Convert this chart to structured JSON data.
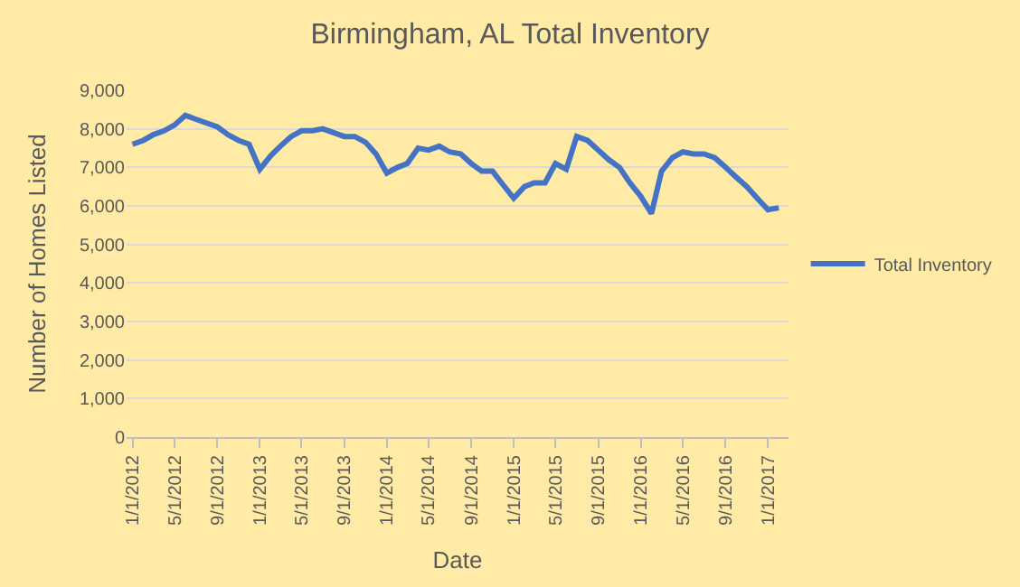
{
  "chart_data": {
    "type": "line",
    "title": "Birmingham, AL Total Inventory",
    "xlabel": "Date",
    "ylabel": "Number of Homes Listed",
    "x": [
      "2012-01",
      "2012-02",
      "2012-03",
      "2012-04",
      "2012-05",
      "2012-06",
      "2012-07",
      "2012-08",
      "2012-09",
      "2012-10",
      "2012-11",
      "2012-12",
      "2013-01",
      "2013-02",
      "2013-03",
      "2013-04",
      "2013-05",
      "2013-06",
      "2013-07",
      "2013-08",
      "2013-09",
      "2013-10",
      "2013-11",
      "2013-12",
      "2014-01",
      "2014-02",
      "2014-03",
      "2014-04",
      "2014-05",
      "2014-06",
      "2014-07",
      "2014-08",
      "2014-09",
      "2014-10",
      "2014-11",
      "2014-12",
      "2015-01",
      "2015-02",
      "2015-03",
      "2015-04",
      "2015-05",
      "2015-06",
      "2015-07",
      "2015-08",
      "2015-09",
      "2015-10",
      "2015-11",
      "2015-12",
      "2016-01",
      "2016-02",
      "2016-03",
      "2016-04",
      "2016-05",
      "2016-06",
      "2016-07",
      "2016-08",
      "2016-09",
      "2016-10",
      "2016-11",
      "2016-12",
      "2017-01",
      "2017-02"
    ],
    "series": [
      {
        "name": "Total Inventory",
        "color": "#4472c4",
        "values": [
          7600,
          7700,
          7850,
          7950,
          8100,
          8350,
          8250,
          8150,
          8050,
          7850,
          7700,
          7600,
          6950,
          7300,
          7550,
          7800,
          7950,
          7950,
          8000,
          7900,
          7800,
          7800,
          7650,
          7350,
          6850,
          7000,
          7100,
          7500,
          7450,
          7550,
          7400,
          7350,
          7100,
          6900,
          6900,
          6550,
          6200,
          6500,
          6600,
          6600,
          7100,
          6950,
          7800,
          7700,
          7450,
          7200,
          7000,
          6600,
          6250,
          5800,
          6900,
          7250,
          7400,
          7350,
          7350,
          7250,
          7000,
          6750,
          6500,
          6200,
          5900,
          5950
        ]
      }
    ],
    "xlim": [
      "2011-12-15",
      "2017-03-01"
    ],
    "xticks": [
      {
        "value": "2012-01-01",
        "label": "1/1/2012"
      },
      {
        "value": "2012-05-01",
        "label": "5/1/2012"
      },
      {
        "value": "2012-09-01",
        "label": "9/1/2012"
      },
      {
        "value": "2013-01-01",
        "label": "1/1/2013"
      },
      {
        "value": "2013-05-01",
        "label": "5/1/2013"
      },
      {
        "value": "2013-09-01",
        "label": "9/1/2013"
      },
      {
        "value": "2014-01-01",
        "label": "1/1/2014"
      },
      {
        "value": "2014-05-01",
        "label": "5/1/2014"
      },
      {
        "value": "2014-09-01",
        "label": "9/1/2014"
      },
      {
        "value": "2015-01-01",
        "label": "1/1/2015"
      },
      {
        "value": "2015-05-01",
        "label": "5/1/2015"
      },
      {
        "value": "2015-09-01",
        "label": "9/1/2015"
      },
      {
        "value": "2016-01-01",
        "label": "1/1/2016"
      },
      {
        "value": "2016-05-01",
        "label": "5/1/2016"
      },
      {
        "value": "2016-09-01",
        "label": "9/1/2016"
      },
      {
        "value": "2017-01-01",
        "label": "1/1/2017"
      }
    ],
    "ylim": [
      0,
      9000
    ],
    "yticks": [
      {
        "value": 0,
        "label": "0"
      },
      {
        "value": 1000,
        "label": "1,000"
      },
      {
        "value": 2000,
        "label": "2,000"
      },
      {
        "value": 3000,
        "label": "3,000"
      },
      {
        "value": 4000,
        "label": "4,000"
      },
      {
        "value": 5000,
        "label": "5,000"
      },
      {
        "value": 6000,
        "label": "6,000"
      },
      {
        "value": 7000,
        "label": "7,000"
      },
      {
        "value": 8000,
        "label": "8,000"
      },
      {
        "value": 9000,
        "label": "9,000"
      }
    ],
    "grid": "y",
    "legend": "right",
    "marker": "none",
    "line_style": "solid"
  }
}
